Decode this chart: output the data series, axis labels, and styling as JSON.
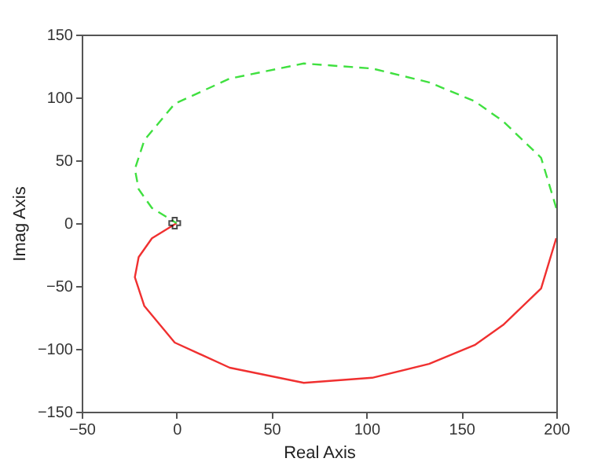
{
  "chart_data": {
    "type": "line",
    "xlabel": "Real Axis",
    "ylabel": "Imag Axis",
    "xlim": [
      -50,
      200
    ],
    "ylim": [
      -150,
      150
    ],
    "xticks": [
      -50,
      0,
      50,
      100,
      150,
      200
    ],
    "yticks": [
      -150,
      -100,
      -50,
      0,
      50,
      100,
      150
    ],
    "grid": false,
    "series": [
      {
        "color": "#f03030",
        "line_style": "solid",
        "x": [
          200,
          192,
          172,
          157,
          133,
          103,
          67,
          28,
          -1,
          -17,
          -22,
          -20,
          -13,
          0
        ],
        "values": [
          -12,
          -52,
          -81,
          -97,
          -112,
          -123,
          -127,
          -115,
          -95,
          -66,
          -43,
          -27,
          -12,
          0
        ]
      },
      {
        "color": "#40e040",
        "line_style": "dashed",
        "x": [
          200,
          192,
          172,
          157,
          133,
          103,
          67,
          28,
          -1,
          -17,
          -22,
          -20,
          -13,
          0
        ],
        "values": [
          12,
          52,
          81,
          97,
          112,
          123,
          127,
          115,
          95,
          66,
          43,
          27,
          12,
          0
        ]
      },
      {
        "type": "scatter",
        "marker": "cross",
        "color": "#000000",
        "x": [
          -1
        ],
        "values": [
          0
        ]
      }
    ]
  }
}
